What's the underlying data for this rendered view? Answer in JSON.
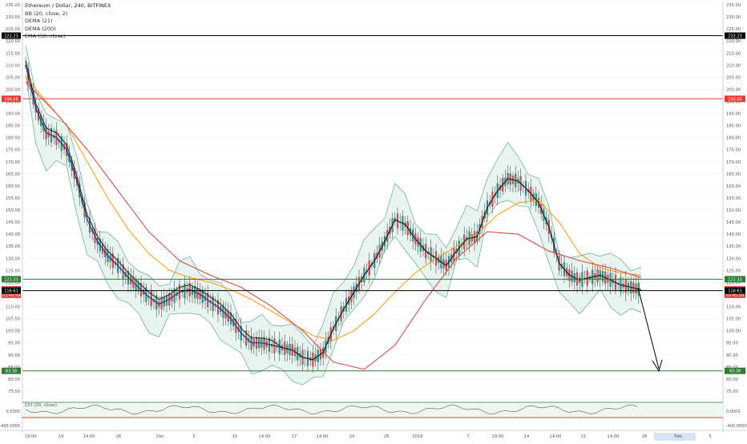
{
  "header": {
    "symbol_line": "Ethereum / Dollar, 240, BITFINEX",
    "indicators": [
      "BB (20, close, 2)",
      "DEMA (21)",
      "DEMA (200)",
      "EMA (50, close)"
    ]
  },
  "chart_data": [
    {
      "type": "line",
      "title": "Ethereum / Dollar, 240, BITFINEX",
      "y_axis_ticks": [
        75,
        80,
        85,
        90,
        95,
        100,
        105,
        110,
        115,
        120,
        125,
        130,
        135,
        140,
        145,
        150,
        155,
        160,
        165,
        170,
        175,
        180,
        185,
        190,
        195,
        200,
        205,
        210,
        215,
        220,
        225,
        230,
        235
      ],
      "x_axis_ticks": [
        "19:00",
        "19",
        "14:00",
        "26",
        "Dec",
        "5",
        "10",
        "14:00",
        "17",
        "14:00",
        "24",
        "28",
        "2019",
        "7",
        "19:00",
        "14",
        "14:00",
        "21",
        "14:00",
        "28",
        "Feb",
        "5"
      ],
      "ylim": [
        72,
        236
      ],
      "price_labels": [
        {
          "text": "222.23",
          "value": 222.23,
          "kind": "line-black"
        },
        {
          "text": "196.06",
          "value": 196.06,
          "kind": "line-red"
        },
        {
          "text": "121.33",
          "value": 121.33,
          "kind": "line-green"
        },
        {
          "text": "117.12",
          "value": 117.12,
          "kind": "indicator-red"
        },
        {
          "text": "03:45:59",
          "value": 114.9,
          "kind": "countdown"
        },
        {
          "text": "116.61",
          "value": 116.61,
          "kind": "line-black"
        },
        {
          "text": "83.38",
          "value": 83.38,
          "kind": "line-green"
        }
      ],
      "horizontal_levels": [
        {
          "value": 222.23,
          "color": "#000000"
        },
        {
          "value": 196.06,
          "color": "#e53935"
        },
        {
          "value": 121.33,
          "color": "#2e7d32"
        },
        {
          "value": 116.61,
          "color": "#000000"
        },
        {
          "value": 83.38,
          "color": "#2e7d32"
        }
      ],
      "series": [
        {
          "color": "#26a69a",
          "x": [
            0,
            5,
            10,
            15,
            20,
            25,
            30,
            35,
            40,
            45,
            50,
            55,
            60,
            65,
            70,
            75,
            80,
            85,
            90,
            95,
            100,
            105,
            110,
            115,
            120,
            125,
            130,
            135,
            140,
            145,
            150,
            155,
            160,
            165,
            170,
            175,
            180,
            185,
            190,
            195,
            200,
            205,
            210,
            215,
            220,
            225,
            230,
            235,
            240,
            245,
            250,
            255,
            260,
            265,
            270,
            275,
            280,
            285,
            290,
            295,
            300
          ],
          "values": [
            212,
            188,
            178,
            179,
            177,
            160,
            142,
            135,
            130,
            125,
            120,
            116,
            111,
            108,
            113,
            118,
            119,
            115,
            112,
            108,
            104,
            97,
            93,
            95,
            94,
            93,
            91,
            88,
            87,
            92,
            104,
            112,
            118,
            126,
            132,
            140,
            150,
            145,
            136,
            131,
            128,
            124,
            136,
            141,
            138,
            155,
            162,
            166,
            162,
            158,
            152,
            140,
            124,
            121,
            119,
            122,
            124,
            121,
            118,
            117,
            117
          ]
        },
        {
          "color": "#1a237e",
          "x": [
            0,
            5,
            10,
            15,
            20,
            25,
            30,
            35,
            40,
            45,
            50,
            55,
            60,
            65,
            70,
            75,
            80,
            85,
            90,
            95,
            100,
            105,
            110,
            115,
            120,
            125,
            130,
            135,
            140,
            145,
            150,
            155,
            160,
            165,
            170,
            175,
            180,
            185,
            190,
            195,
            200,
            205,
            210,
            215,
            220,
            225,
            230,
            235,
            240,
            245,
            250,
            255,
            260,
            265,
            270,
            275,
            280,
            285,
            290,
            295,
            300
          ],
          "values": [
            210,
            192,
            182,
            180,
            175,
            162,
            146,
            137,
            131,
            127,
            122,
            118,
            114,
            111,
            113,
            116,
            117,
            115,
            112,
            109,
            105,
            99,
            95,
            95,
            94,
            93,
            92,
            89,
            88,
            91,
            101,
            109,
            116,
            123,
            129,
            137,
            146,
            144,
            138,
            133,
            130,
            127,
            133,
            138,
            139,
            151,
            158,
            163,
            162,
            158,
            153,
            143,
            128,
            123,
            121,
            122,
            123,
            121,
            119,
            118,
            117
          ]
        },
        {
          "color": "#ff9800",
          "x": [
            0,
            10,
            20,
            30,
            40,
            50,
            60,
            70,
            80,
            90,
            100,
            110,
            120,
            130,
            140,
            150,
            160,
            170,
            180,
            190,
            200,
            210,
            220,
            230,
            240,
            250,
            260,
            270,
            280,
            290,
            300
          ],
          "values": [
            205,
            195,
            185,
            170,
            155,
            142,
            132,
            125,
            122,
            120,
            117,
            113,
            108,
            103,
            98,
            96,
            100,
            107,
            116,
            124,
            130,
            135,
            140,
            148,
            153,
            154,
            145,
            132,
            126,
            124,
            123
          ]
        },
        {
          "color": "#e53935",
          "x": [
            0,
            15,
            30,
            45,
            60,
            75,
            90,
            105,
            120,
            135,
            150,
            165,
            180,
            195,
            210,
            225,
            240,
            255,
            270,
            285,
            300
          ],
          "values": [
            203,
            190,
            175,
            158,
            141,
            129,
            123,
            118,
            110,
            100,
            87,
            84,
            94,
            113,
            130,
            141,
            140,
            133,
            129,
            126,
            122
          ]
        }
      ]
    },
    {
      "type": "line",
      "title": "CCI (20, close)",
      "y_axis_ticks": [
        "0.0000",
        "-400.0000"
      ],
      "right_labels": [
        "0.0000",
        "-400.0000"
      ]
    }
  ],
  "colors": {
    "bollinger_fill": "#e8f4f0",
    "bollinger_band": "#5fa89a",
    "candle_up": "#26a69a",
    "candle_down": "#ef5350",
    "axis_text": "#555555",
    "highlight_tick": "#d6e4f5"
  }
}
